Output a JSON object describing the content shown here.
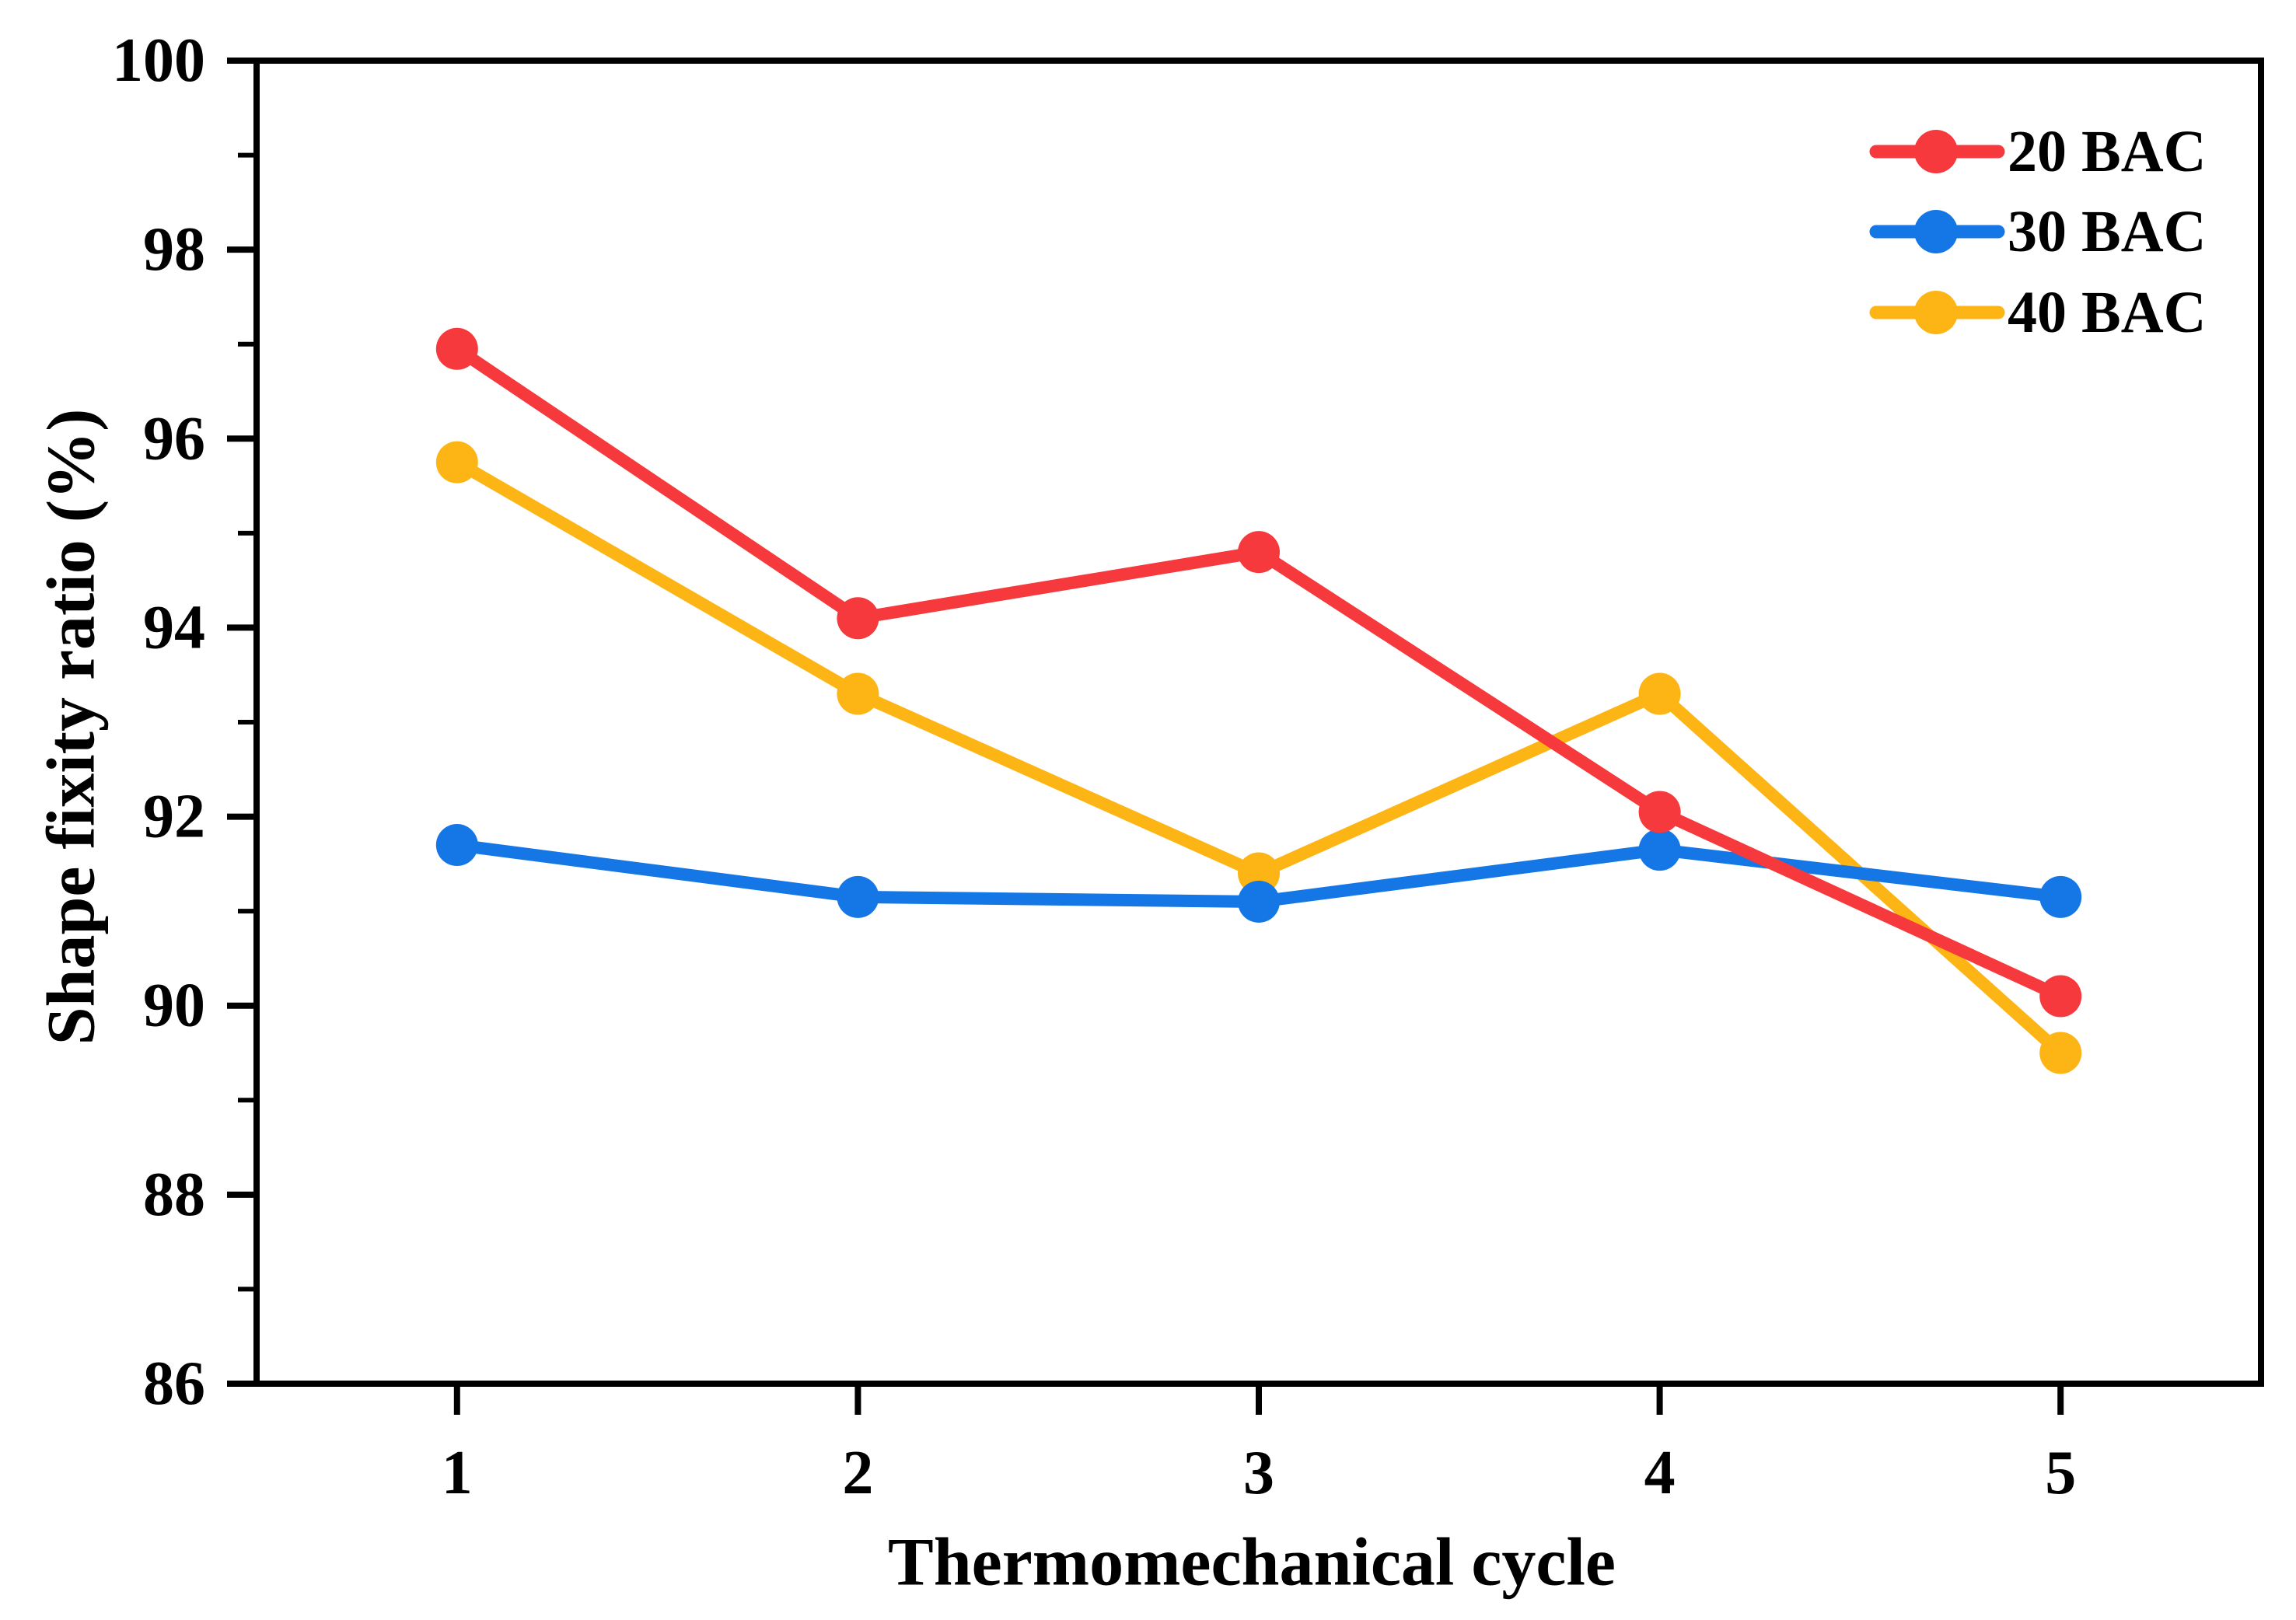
{
  "figure": {
    "background": "#ffffff",
    "text_color": "#000000",
    "axis_color": "#000000"
  },
  "chart_data": {
    "type": "line",
    "x": [
      1,
      2,
      3,
      4,
      5
    ],
    "series": [
      {
        "name": "20 BAC",
        "color": "#F5393D",
        "marker": "circle",
        "values": [
          96.95,
          94.1,
          94.8,
          92.05,
          90.1
        ]
      },
      {
        "name": "30 BAC",
        "color": "#1577E6",
        "marker": "circle",
        "values": [
          91.7,
          91.15,
          91.1,
          91.65,
          91.15
        ]
      },
      {
        "name": "40 BAC",
        "color": "#FDB515",
        "marker": "circle",
        "values": [
          95.75,
          93.3,
          91.4,
          93.3,
          89.5
        ]
      }
    ],
    "draw_order": [
      2,
      1,
      0
    ],
    "title": "",
    "xlabel": "Thermomechanical cycle",
    "ylabel": "Shape fixity ratio (%)",
    "xlim": [
      0.5,
      5.5
    ],
    "ylim": [
      86,
      100
    ],
    "xticks": [
      1,
      2,
      3,
      4,
      5
    ],
    "yticks": [
      86,
      88,
      90,
      92,
      94,
      96,
      98,
      100
    ],
    "yminorticks": [
      87,
      89,
      91,
      93,
      95,
      97,
      99
    ],
    "grid": false,
    "frame": "full-box",
    "legend_position": "top-right",
    "legend_frame": false
  }
}
